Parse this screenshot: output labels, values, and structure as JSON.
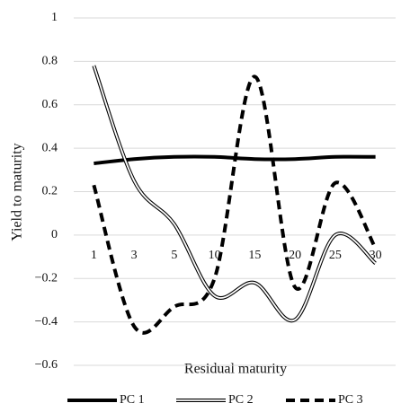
{
  "chart_data": {
    "type": "line",
    "x_label": "Residual maturity",
    "y_label": "Yield to maturity",
    "categories": [
      "1",
      "3",
      "5",
      "10",
      "15",
      "20",
      "25",
      "30"
    ],
    "series": [
      {
        "name": "PC 1",
        "color": "#000000",
        "style": "solid",
        "values": [
          0.33,
          0.35,
          0.36,
          0.36,
          0.35,
          0.35,
          0.36,
          0.36
        ]
      },
      {
        "name": "PC 2",
        "color": "#000000",
        "style": "double",
        "values": [
          0.78,
          0.25,
          0.05,
          -0.28,
          -0.22,
          -0.39,
          0,
          -0.13
        ]
      },
      {
        "name": "PC 3",
        "color": "#000000",
        "style": "dashed",
        "values": [
          0.23,
          -0.42,
          -0.33,
          -0.2,
          0.73,
          -0.24,
          0.24,
          -0.06
        ]
      }
    ],
    "ylim": [
      -0.6,
      1
    ],
    "yticks": [
      {
        "value": -0.6,
        "label": "−0.6"
      },
      {
        "value": -0.4,
        "label": "−0.4"
      },
      {
        "value": -0.2,
        "label": "−0.2"
      },
      0,
      0.2,
      0.4,
      0.6,
      0.8,
      1
    ],
    "grid": true,
    "legend": "bottom"
  }
}
